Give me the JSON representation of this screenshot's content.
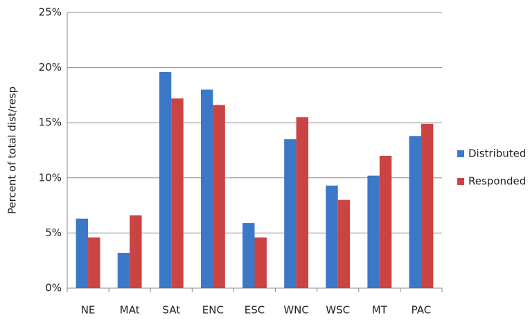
{
  "chart_data": {
    "type": "bar",
    "y_label": "Percent of total dist/resp",
    "categories": [
      "NE",
      "MAt",
      "SAt",
      "ENC",
      "ESC",
      "WNC",
      "WSC",
      "MT",
      "PAC"
    ],
    "series": [
      {
        "name": "Distributed",
        "color": "#3b78c8",
        "values": [
          6.3,
          3.2,
          19.6,
          18.0,
          5.9,
          13.5,
          9.3,
          10.2,
          13.8
        ]
      },
      {
        "name": "Responded",
        "color": "#cc4343",
        "values": [
          4.6,
          6.6,
          17.2,
          16.6,
          4.6,
          15.5,
          8.0,
          12.0,
          14.9
        ]
      }
    ],
    "ylim": [
      0,
      25
    ],
    "yticks": [
      {
        "value": 0,
        "label": "0%"
      },
      {
        "value": 5,
        "label": "5%"
      },
      {
        "value": 10,
        "label": "10%"
      },
      {
        "value": 15,
        "label": "15%"
      },
      {
        "value": 20,
        "label": "20%"
      },
      {
        "value": 25,
        "label": "25%"
      }
    ],
    "grid": true,
    "legend": "right"
  }
}
